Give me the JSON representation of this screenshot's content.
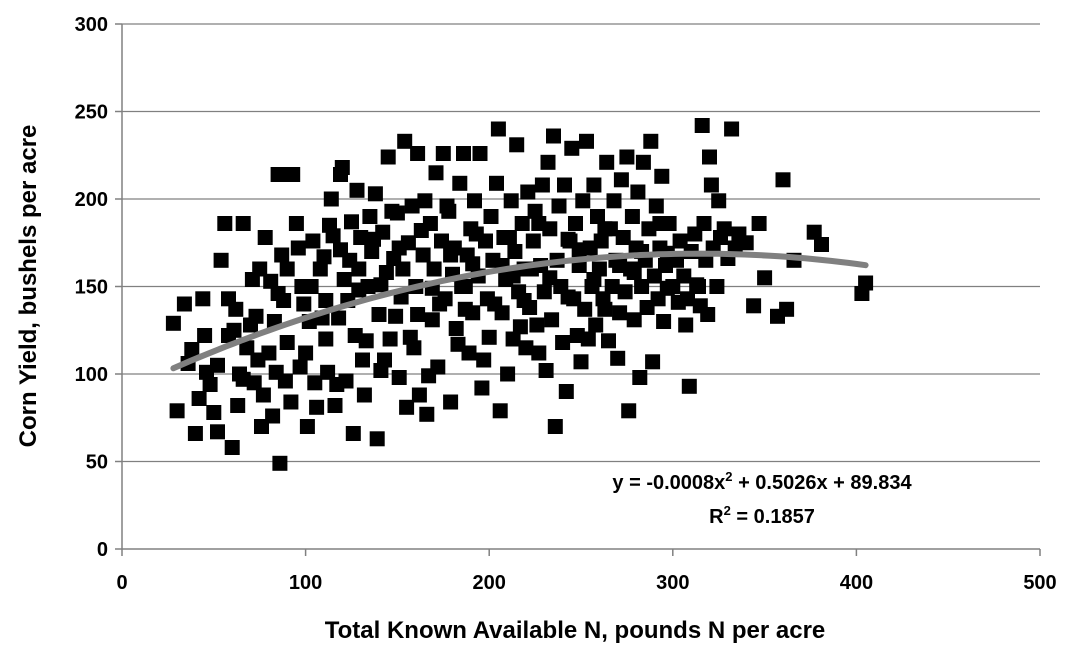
{
  "chart_data": {
    "type": "scatter",
    "xlabel": "Total Known Available N, pounds N per acre",
    "ylabel": "Corn Yield, bushels per acre",
    "xlim": [
      0,
      500
    ],
    "ylim": [
      0,
      300
    ],
    "x_ticks": [
      "0",
      "100",
      "200",
      "300",
      "400",
      "500"
    ],
    "y_ticks": [
      "0",
      "50",
      "100",
      "150",
      "200",
      "250",
      "300"
    ],
    "grid": "horizontal",
    "marker": "square",
    "marker_color": "#000000",
    "trendline": {
      "type": "polynomial",
      "coefficients": [
        -0.0008,
        0.5026,
        89.834
      ],
      "x_range": [
        28,
        405
      ],
      "color": "#808080",
      "equation_text": "y = -0.0008x² + 0.5026x + 89.834",
      "equation_main": "y = -0.0008x",
      "equation_sup": "2",
      "equation_rest": " + 0.5026x + 89.834",
      "r2_text": "R² = 0.1857",
      "r2_main": "R",
      "r2_sup": "2",
      "r2_rest": " = 0.1857"
    },
    "series": [
      {
        "points": [
          [
            28,
            129
          ],
          [
            30,
            79
          ],
          [
            34,
            140
          ],
          [
            36,
            106
          ],
          [
            38,
            114
          ],
          [
            40,
            66
          ],
          [
            42,
            86
          ],
          [
            44,
            143
          ],
          [
            46,
            101
          ],
          [
            48,
            94
          ],
          [
            50,
            78
          ],
          [
            52,
            67
          ],
          [
            54,
            165
          ],
          [
            56,
            186
          ],
          [
            58,
            122
          ],
          [
            60,
            58
          ],
          [
            62,
            137
          ],
          [
            63,
            82
          ],
          [
            64,
            100
          ],
          [
            66,
            186
          ],
          [
            68,
            115
          ],
          [
            70,
            128
          ],
          [
            72,
            95
          ],
          [
            74,
            108
          ],
          [
            75,
            160
          ],
          [
            76,
            70
          ],
          [
            78,
            178
          ],
          [
            80,
            112
          ],
          [
            81,
            153
          ],
          [
            82,
            76
          ],
          [
            84,
            101
          ],
          [
            85,
            214
          ],
          [
            86,
            49
          ],
          [
            87,
            168
          ],
          [
            88,
            142
          ],
          [
            89,
            96
          ],
          [
            90,
            118
          ],
          [
            92,
            84
          ],
          [
            93,
            214
          ],
          [
            95,
            186
          ],
          [
            96,
            172
          ],
          [
            98,
            150
          ],
          [
            100,
            112
          ],
          [
            101,
            70
          ],
          [
            102,
            130
          ],
          [
            104,
            176
          ],
          [
            105,
            95
          ],
          [
            106,
            81
          ],
          [
            108,
            160
          ],
          [
            110,
            167
          ],
          [
            111,
            142
          ],
          [
            112,
            101
          ],
          [
            114,
            200
          ],
          [
            115,
            179
          ],
          [
            116,
            82
          ],
          [
            118,
            132
          ],
          [
            119,
            214
          ],
          [
            120,
            218
          ],
          [
            121,
            154
          ],
          [
            122,
            96
          ],
          [
            124,
            165
          ],
          [
            125,
            187
          ],
          [
            126,
            66
          ],
          [
            127,
            122
          ],
          [
            128,
            205
          ],
          [
            130,
            178
          ],
          [
            131,
            108
          ],
          [
            132,
            88
          ],
          [
            134,
            150
          ],
          [
            135,
            190
          ],
          [
            136,
            170
          ],
          [
            138,
            203
          ],
          [
            139,
            63
          ],
          [
            140,
            134
          ],
          [
            141,
            102
          ],
          [
            142,
            181
          ],
          [
            144,
            158
          ],
          [
            145,
            224
          ],
          [
            146,
            120
          ],
          [
            148,
            166
          ],
          [
            150,
            192
          ],
          [
            151,
            98
          ],
          [
            152,
            144
          ],
          [
            154,
            233
          ],
          [
            155,
            81
          ],
          [
            156,
            175
          ],
          [
            158,
            196
          ],
          [
            159,
            115
          ],
          [
            160,
            150
          ],
          [
            161,
            226
          ],
          [
            162,
            88
          ],
          [
            164,
            168
          ],
          [
            165,
            199
          ],
          [
            166,
            77
          ],
          [
            168,
            186
          ],
          [
            169,
            131
          ],
          [
            170,
            160
          ],
          [
            171,
            215
          ],
          [
            172,
            104
          ],
          [
            174,
            176
          ],
          [
            175,
            226
          ],
          [
            176,
            143
          ],
          [
            178,
            193
          ],
          [
            179,
            84
          ],
          [
            180,
            157
          ],
          [
            181,
            172
          ],
          [
            182,
            126
          ],
          [
            184,
            209
          ],
          [
            185,
            150
          ],
          [
            186,
            226
          ],
          [
            188,
            168
          ],
          [
            189,
            112
          ],
          [
            190,
            183
          ],
          [
            191,
            135
          ],
          [
            192,
            199
          ],
          [
            194,
            156
          ],
          [
            195,
            226
          ],
          [
            196,
            92
          ],
          [
            198,
            176
          ],
          [
            199,
            143
          ],
          [
            200,
            121
          ],
          [
            201,
            190
          ],
          [
            202,
            165
          ],
          [
            204,
            209
          ],
          [
            205,
            240
          ],
          [
            206,
            79
          ],
          [
            207,
            135
          ],
          [
            208,
            178
          ],
          [
            209,
            154
          ],
          [
            210,
            100
          ],
          [
            212,
            199
          ],
          [
            213,
            120
          ],
          [
            214,
            170
          ],
          [
            215,
            231
          ],
          [
            216,
            147
          ],
          [
            218,
            186
          ],
          [
            219,
            160
          ],
          [
            220,
            115
          ],
          [
            221,
            204
          ],
          [
            222,
            138
          ],
          [
            224,
            176
          ],
          [
            225,
            193
          ],
          [
            226,
            128
          ],
          [
            228,
            162
          ],
          [
            229,
            208
          ],
          [
            230,
            147
          ],
          [
            231,
            102
          ],
          [
            232,
            221
          ],
          [
            233,
            183
          ],
          [
            234,
            131
          ],
          [
            235,
            236
          ],
          [
            236,
            70
          ],
          [
            237,
            165
          ],
          [
            238,
            196
          ],
          [
            239,
            150
          ],
          [
            240,
            118
          ],
          [
            241,
            208
          ],
          [
            242,
            90
          ],
          [
            244,
            176
          ],
          [
            245,
            229
          ],
          [
            246,
            143
          ],
          [
            247,
            186
          ],
          [
            248,
            122
          ],
          [
            249,
            162
          ],
          [
            250,
            107
          ],
          [
            251,
            199
          ],
          [
            252,
            137
          ],
          [
            253,
            233
          ],
          [
            255,
            172
          ],
          [
            256,
            150
          ],
          [
            257,
            208
          ],
          [
            258,
            128
          ],
          [
            259,
            190
          ],
          [
            260,
            160
          ],
          [
            261,
            176
          ],
          [
            262,
            143
          ],
          [
            264,
            221
          ],
          [
            265,
            119
          ],
          [
            266,
            183
          ],
          [
            267,
            150
          ],
          [
            268,
            199
          ],
          [
            269,
            165
          ],
          [
            270,
            109
          ],
          [
            271,
            135
          ],
          [
            272,
            211
          ],
          [
            273,
            178
          ],
          [
            274,
            147
          ],
          [
            275,
            224
          ],
          [
            276,
            79
          ],
          [
            277,
            160
          ],
          [
            278,
            190
          ],
          [
            279,
            131
          ],
          [
            280,
            172
          ],
          [
            281,
            204
          ],
          [
            282,
            98
          ],
          [
            283,
            150
          ],
          [
            284,
            221
          ],
          [
            285,
            165
          ],
          [
            286,
            138
          ],
          [
            287,
            183
          ],
          [
            288,
            233
          ],
          [
            289,
            107
          ],
          [
            290,
            156
          ],
          [
            291,
            196
          ],
          [
            292,
            143
          ],
          [
            293,
            172
          ],
          [
            294,
            213
          ],
          [
            295,
            130
          ],
          [
            296,
            162
          ],
          [
            298,
            186
          ],
          [
            300,
            150
          ],
          [
            302,
            165
          ],
          [
            304,
            176
          ],
          [
            306,
            156
          ],
          [
            308,
            143
          ],
          [
            309,
            93
          ],
          [
            310,
            170
          ],
          [
            312,
            180
          ],
          [
            314,
            150
          ],
          [
            315,
            139
          ],
          [
            316,
            242
          ],
          [
            317,
            186
          ],
          [
            318,
            165
          ],
          [
            319,
            134
          ],
          [
            320,
            224
          ],
          [
            321,
            208
          ],
          [
            322,
            172
          ],
          [
            324,
            150
          ],
          [
            325,
            199
          ],
          [
            326,
            178
          ],
          [
            328,
            183
          ],
          [
            330,
            166
          ],
          [
            332,
            240
          ],
          [
            334,
            172
          ],
          [
            336,
            180
          ],
          [
            340,
            175
          ],
          [
            344,
            139
          ],
          [
            347,
            186
          ],
          [
            350,
            155
          ],
          [
            357,
            133
          ],
          [
            360,
            211
          ],
          [
            362,
            137
          ],
          [
            366,
            165
          ],
          [
            377,
            181
          ],
          [
            381,
            174
          ],
          [
            403,
            146
          ],
          [
            405,
            152
          ],
          [
            45,
            122
          ],
          [
            52,
            105
          ],
          [
            58,
            143
          ],
          [
            66,
            97
          ],
          [
            71,
            154
          ],
          [
            77,
            88
          ],
          [
            83,
            130
          ],
          [
            90,
            160
          ],
          [
            97,
            104
          ],
          [
            103,
            150
          ],
          [
            109,
            132
          ],
          [
            113,
            185
          ],
          [
            117,
            94
          ],
          [
            123,
            142
          ],
          [
            129,
            160
          ],
          [
            133,
            119
          ],
          [
            137,
            177
          ],
          [
            143,
            108
          ],
          [
            147,
            193
          ],
          [
            149,
            133
          ],
          [
            153,
            160
          ],
          [
            157,
            121
          ],
          [
            163,
            182
          ],
          [
            167,
            99
          ],
          [
            173,
            140
          ],
          [
            177,
            196
          ],
          [
            183,
            117
          ],
          [
            187,
            150
          ],
          [
            193,
            180
          ],
          [
            197,
            108
          ],
          [
            203,
            140
          ],
          [
            211,
            178
          ],
          [
            217,
            127
          ],
          [
            223,
            160
          ],
          [
            227,
            112
          ],
          [
            243,
            144
          ],
          [
            254,
            120
          ],
          [
            263,
            137
          ],
          [
            297,
            169
          ],
          [
            303,
            141
          ],
          [
            119,
            171
          ],
          [
            141,
            151
          ],
          [
            161,
            134
          ],
          [
            179,
            168
          ],
          [
            191,
            163
          ],
          [
            213,
            156
          ],
          [
            227,
            186
          ],
          [
            243,
            177
          ],
          [
            257,
            154
          ],
          [
            271,
            162
          ],
          [
            283,
            170
          ],
          [
            297,
            149
          ],
          [
            129,
            148
          ],
          [
            151,
            172
          ],
          [
            169,
            149
          ],
          [
            187,
            137
          ],
          [
            207,
            162
          ],
          [
            219,
            142
          ],
          [
            233,
            155
          ],
          [
            249,
            171
          ],
          [
            263,
            183
          ],
          [
            279,
            158
          ],
          [
            293,
            186
          ],
          [
            307,
            128
          ],
          [
            313,
            151
          ],
          [
            111,
            120
          ],
          [
            99,
            140
          ],
          [
            85,
            146
          ],
          [
            73,
            133
          ],
          [
            61,
            125
          ]
        ]
      }
    ]
  }
}
